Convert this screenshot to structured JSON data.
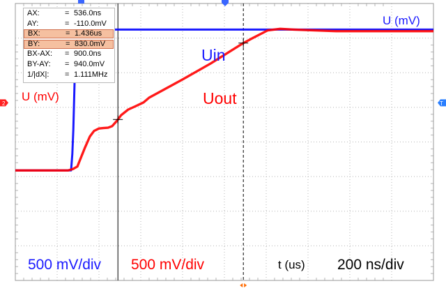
{
  "chart_data": {
    "type": "line",
    "title": "",
    "xlabel": "t (us)",
    "ylabel_left": "U (mV)",
    "ylabel_right": "U (mV)",
    "x_scale": "200 ns/div",
    "y_scales": [
      {
        "text": "500 mV/div",
        "color": "#1a1aff"
      },
      {
        "text": "500 mV/div",
        "color": "#ff0000"
      }
    ],
    "grid": true,
    "x_unit": "ns",
    "y_unit": "mV",
    "xlim": [
      -200,
      2800
    ],
    "ylim": [
      -1500,
      2000
    ],
    "series": [
      {
        "name": "Uin",
        "color": "#0000ff",
        "x": [
          -200,
          200,
          209,
          216,
          222,
          228,
          234,
          2800
        ],
        "y": [
          -110,
          -110,
          100,
          400,
          800,
          1200,
          1670,
          1670
        ]
      },
      {
        "name": "Uout",
        "color": "#ff0000",
        "x": [
          -200,
          180,
          215,
          245,
          300,
          335,
          365,
          400,
          430,
          465,
          495,
          530,
          560,
          610,
          660,
          720,
          760,
          1000,
          1200,
          1436,
          1500,
          1610,
          1700,
          1800,
          2100,
          2400,
          2800
        ],
        "y": [
          -110,
          -110,
          -90,
          -60,
          180,
          320,
          390,
          420,
          425,
          430,
          450,
          520,
          590,
          660,
          700,
          750,
          810,
          1040,
          1240,
          1500,
          1560,
          1660,
          1680,
          1670,
          1650,
          1650,
          1650
        ]
      }
    ],
    "cursors": {
      "A": {
        "x": 536.0,
        "y": -110.0,
        "x_unit": "ns",
        "y_unit": "mV"
      },
      "B": {
        "x": 1436,
        "y": 830.0,
        "x_unit": "ns",
        "y_unit": "mV"
      }
    },
    "markers": {
      "left_channel": "2",
      "right_channel": "T"
    }
  },
  "cursor_box": [
    {
      "label": "AX:",
      "eq": "=",
      "value": "536.0ns",
      "highlight": false
    },
    {
      "label": "AY:",
      "eq": "=",
      "value": "-110.0mV",
      "highlight": false
    },
    {
      "label": "BX:",
      "eq": "=",
      "value": "1.436us",
      "highlight": true
    },
    {
      "label": "BY:",
      "eq": "=",
      "value": "830.0mV",
      "highlight": true
    },
    {
      "label": "BX-AX:",
      "eq": "=",
      "value": "900.0ns",
      "highlight": false
    },
    {
      "label": "BY-AY:",
      "eq": "=",
      "value": "940.0mV",
      "highlight": false
    },
    {
      "label": "1/|dX|:",
      "eq": "=",
      "value": "1.111MHz",
      "highlight": false
    }
  ],
  "colors": {
    "grid": "#b4b4b4",
    "blue": "#0000ff",
    "red": "#ff0000",
    "label_blue": "#1a1aff",
    "label_red": "#ff0000",
    "marker_red": "#ff2020",
    "marker_blue": "#2a7fff",
    "marker_top": "#3a66ff",
    "marker_orange": "#ff6a00",
    "frame": "#999999"
  }
}
